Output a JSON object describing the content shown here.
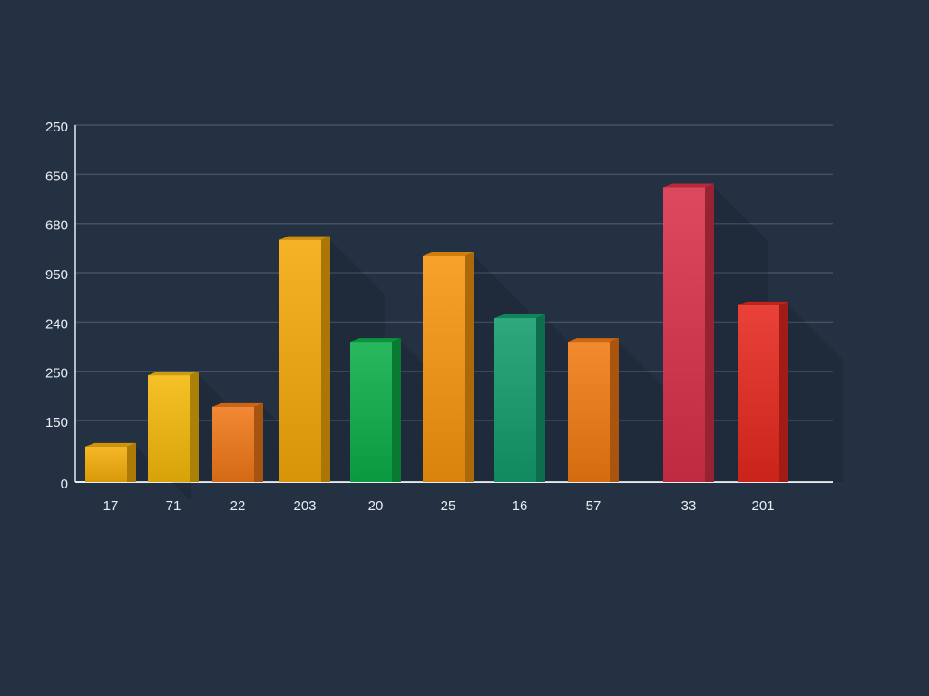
{
  "chart_data": {
    "type": "bar",
    "categories": [
      "17",
      "71",
      "22",
      "203",
      "20",
      "25",
      "16",
      "57",
      "33",
      "201"
    ],
    "values": [
      72,
      217,
      153,
      492,
      285,
      460,
      333,
      285,
      599,
      359
    ],
    "colors": [
      "#f5ae0a",
      "#f5b80a",
      "#f07818",
      "#f5a80a",
      "#0cae48",
      "#f5950e",
      "#139c6c",
      "#f27a12",
      "#d83048",
      "#e6281e"
    ],
    "ylim": [
      0,
      725
    ],
    "yticks": [
      0,
      {
        "value": 125,
        "label": "150"
      },
      {
        "value": 225,
        "label": "250"
      },
      {
        "value": 325,
        "label": "240"
      },
      {
        "value": 425,
        "label": "950"
      },
      {
        "value": 525,
        "label": "680"
      },
      {
        "value": 625,
        "label": "650"
      },
      {
        "value": 725,
        "label": "250"
      }
    ],
    "grid": true
  }
}
